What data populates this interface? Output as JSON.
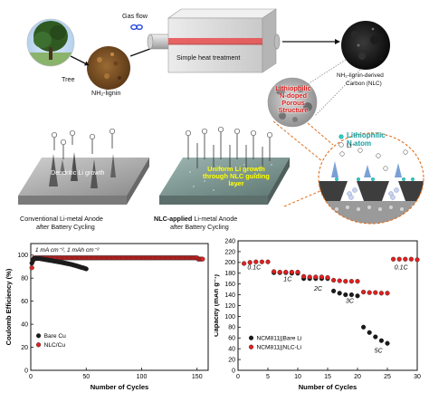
{
  "top": {
    "gas_flow": "Gas flow",
    "tree": "Tree",
    "lignin": "NH₂-lignin",
    "heat": "Simple heat treatment",
    "nlc_line1": "NH₂-lignin-derived",
    "nlc_line2": "Carbon (NLC)",
    "lithiophilic_lines": [
      "Lithiophilic",
      "N-doped",
      "Porous",
      "Structure"
    ],
    "conv_dendrite": "Dendritic Li growth",
    "conv_title_line1": "Conventional Li-metal Anode",
    "conv_title_line2": "after Battery Cycling",
    "nlc_uniform_line1": "Uniform Li growth",
    "nlc_uniform_line2": "through NLC guiding layer",
    "nlc_title_bold": "NLC-applied",
    "nlc_title_rest": " Li-metal Anode",
    "nlc_title_line2": "after Battery Cycling",
    "legend_natom_line1": "Lithiophilic",
    "legend_natom_line2": "N atom",
    "legend_li": "Li⁺"
  },
  "colors": {
    "bare": "#1a1a1a",
    "nlc": "#e02020",
    "cyan_text": "#169e9e",
    "highlight": "#ffff00",
    "red_text": "#d9201e",
    "dashed": "#e07020"
  },
  "chart_data": [
    {
      "type": "scatter",
      "title": "",
      "xlabel": "Number of Cycles",
      "ylabel": "Coulomb Efficiency (%)",
      "xlim": [
        0,
        160
      ],
      "ylim": [
        0,
        110
      ],
      "xticks": [
        0,
        50,
        100,
        150
      ],
      "yticks": [
        0,
        20,
        40,
        60,
        80,
        100
      ],
      "annotation": "1 mA cm⁻², 1 mAh cm⁻²",
      "legend_position": "bottom-left",
      "series": [
        {
          "name": "Bare Cu",
          "color": "#1a1a1a",
          "x": [
            1,
            2,
            3,
            4,
            5,
            6,
            7,
            8,
            9,
            10,
            11,
            12,
            13,
            14,
            15,
            16,
            17,
            18,
            19,
            20,
            21,
            22,
            23,
            24,
            25,
            26,
            27,
            28,
            29,
            30,
            31,
            32,
            33,
            34,
            35,
            36,
            37,
            38,
            39,
            40,
            41,
            42,
            43,
            44,
            45,
            46,
            47,
            48,
            49,
            50
          ],
          "y": [
            93,
            96,
            97,
            97,
            97,
            97,
            97,
            97,
            96.8,
            96.6,
            96.5,
            96.3,
            96.1,
            96,
            95.8,
            95.6,
            95.5,
            95.3,
            95.2,
            95,
            94.8,
            94.6,
            94.5,
            94.3,
            94.1,
            94,
            93.8,
            93.6,
            93.4,
            93.2,
            93,
            92.8,
            92.6,
            92.4,
            92.2,
            92,
            91.8,
            91.5,
            91.2,
            91,
            90.7,
            90.4,
            90.1,
            89.8,
            89.5,
            89.2,
            89,
            88.7,
            88.4,
            88
          ]
        },
        {
          "name": "NLC/Cu",
          "color": "#e02020",
          "x_start": 1,
          "x_end": 155,
          "y_first": 89,
          "y_second": 95,
          "y_steady": 97.6,
          "y_end": 96.5
        }
      ]
    },
    {
      "type": "scatter",
      "title": "",
      "xlabel": "Number of Cycles",
      "ylabel": "Capacity (mAh g⁻¹)",
      "xlim": [
        0,
        30
      ],
      "ylim": [
        0,
        240
      ],
      "xticks": [
        0,
        5,
        10,
        15,
        20,
        25,
        30
      ],
      "yticks": [
        0,
        20,
        40,
        60,
        80,
        100,
        120,
        140,
        160,
        180,
        200,
        220,
        240
      ],
      "legend_position": "bottom-left",
      "rate_labels": [
        {
          "text": "0.1C",
          "x": 2.7,
          "y": 187
        },
        {
          "text": "1C",
          "x": 8.3,
          "y": 165
        },
        {
          "text": "2C",
          "x": 13.4,
          "y": 148
        },
        {
          "text": "3C",
          "x": 18.7,
          "y": 125
        },
        {
          "text": "5C",
          "x": 23.5,
          "y": 33
        },
        {
          "text": "0.1C",
          "x": 27.3,
          "y": 187
        }
      ],
      "series": [
        {
          "name": "NCM811||Bare Li",
          "color": "#1a1a1a",
          "x": [
            6,
            7,
            8,
            9,
            10,
            11,
            12,
            13,
            14,
            15,
            16,
            17,
            18,
            19,
            20,
            21,
            22,
            23,
            24,
            25
          ],
          "y": [
            181,
            181,
            181,
            180,
            180,
            170,
            170,
            170,
            170,
            170,
            147,
            143,
            140,
            140,
            138,
            80,
            70,
            62,
            55,
            50
          ]
        },
        {
          "name": "NCM811||NLC-Li",
          "color": "#e02020",
          "x": [
            1,
            2,
            3,
            4,
            5,
            6,
            7,
            8,
            9,
            10,
            11,
            12,
            13,
            14,
            15,
            16,
            17,
            18,
            19,
            20,
            21,
            22,
            23,
            24,
            25,
            26,
            27,
            28,
            29,
            30
          ],
          "y": [
            198,
            200,
            201,
            201,
            201,
            183,
            182,
            182,
            182,
            182,
            174,
            173,
            173,
            173,
            172,
            167,
            166,
            165,
            165,
            165,
            145,
            144,
            144,
            143,
            143,
            206,
            206,
            206,
            206,
            205
          ]
        }
      ]
    }
  ]
}
